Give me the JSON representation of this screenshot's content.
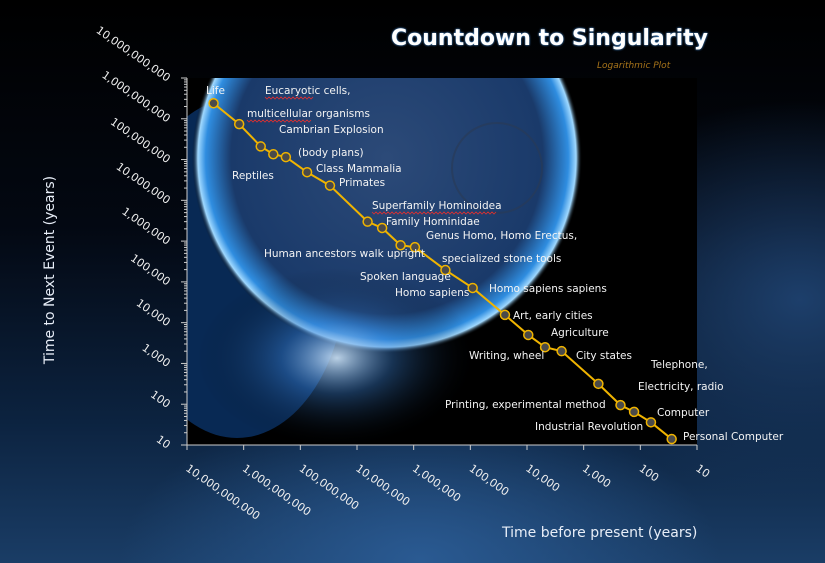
{
  "chart_data": {
    "type": "line",
    "title": "Countdown to Singularity",
    "subtitle": "Logarithmic Plot",
    "xlabel": "Time before present  (years)",
    "ylabel": "Time to Next Event  (years)",
    "x_scale": "log",
    "y_scale": "log",
    "x_reversed": true,
    "xlim": [
      10000000000,
      10
    ],
    "ylim": [
      10,
      10000000000
    ],
    "x_ticks": [
      "10,000,000,000",
      "1,000,000,000",
      "100,000,000",
      "10,000,000",
      "1,000,000",
      "100,000",
      "10,000",
      "1,000",
      "100",
      "10"
    ],
    "y_ticks": [
      "10,000,000,000",
      "1,000,000,000",
      "100,000,000",
      "10,000,000",
      "1,000,000",
      "100,000",
      "10,000",
      "1,000",
      "100",
      "10"
    ],
    "grid": false,
    "line_color": "#f0b400",
    "marker_color": "#4a4a4a",
    "points": [
      {
        "x": 3400000000,
        "y": 2400000000
      },
      {
        "x": 1200000000,
        "y": 740000000
      },
      {
        "x": 500000000,
        "y": 210000000
      },
      {
        "x": 300000000,
        "y": 135000000
      },
      {
        "x": 180000000,
        "y": 115000000
      },
      {
        "x": 76000000,
        "y": 49000000
      },
      {
        "x": 30000000,
        "y": 23000000
      },
      {
        "x": 6500000,
        "y": 3000000
      },
      {
        "x": 3600000,
        "y": 2100000
      },
      {
        "x": 1700000,
        "y": 790000
      },
      {
        "x": 950000,
        "y": 710000
      },
      {
        "x": 275000,
        "y": 195000
      },
      {
        "x": 91000,
        "y": 71000
      },
      {
        "x": 24500,
        "y": 15500
      },
      {
        "x": 9500,
        "y": 5000
      },
      {
        "x": 4800,
        "y": 2500
      },
      {
        "x": 2450,
        "y": 2000
      },
      {
        "x": 550,
        "y": 316
      },
      {
        "x": 224,
        "y": 95
      },
      {
        "x": 129,
        "y": 65
      },
      {
        "x": 65,
        "y": 36
      },
      {
        "x": 28,
        "y": 14
      }
    ],
    "annotations": [
      "Life",
      "Eucaryotic cells,",
      "multicellular organisms",
      "Cambrian Explosion",
      "(body  plans)",
      "Class Mammalia",
      "Reptiles",
      "Primates",
      "Superfamily Hominoidea",
      "Family Hominidae",
      "Genus Homo,  Homo Erectus,",
      "Human ancestors  walk upright",
      "specialized stone tools",
      "Spoken language",
      "Homo sapiens",
      "Homo sapiens sapiens",
      "Art, early cities",
      "Agriculture",
      "Writing, wheel",
      "City states",
      "Telephone,",
      "Electricity, radio",
      "Printing,  experimental method",
      "Computer",
      "Industrial Revolution",
      "Personal Computer"
    ]
  }
}
